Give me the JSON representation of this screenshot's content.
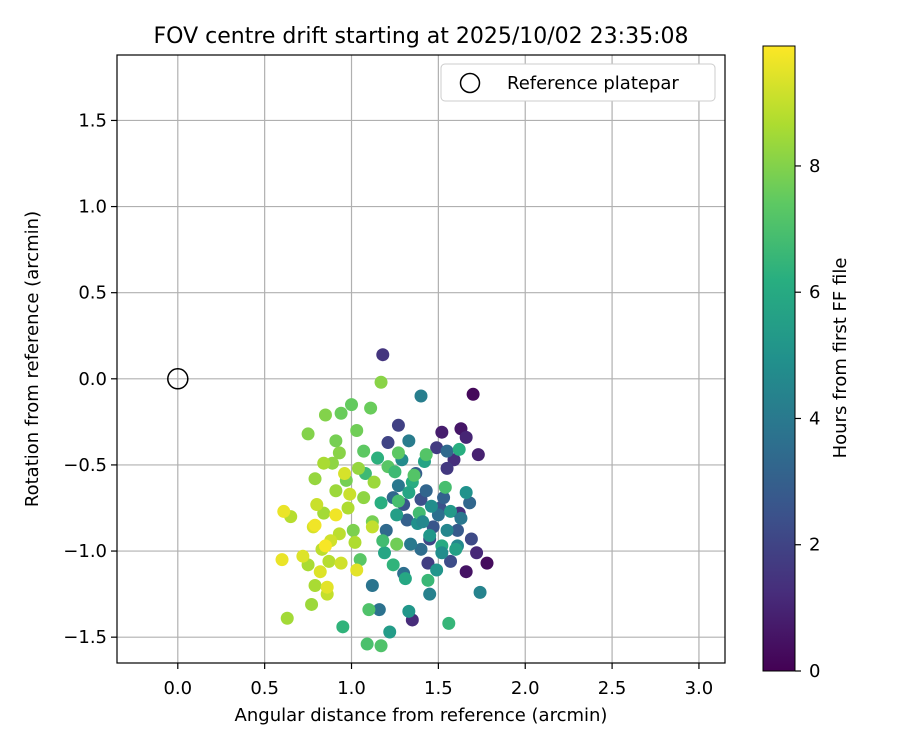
{
  "chart_data": {
    "type": "scatter",
    "title": "FOV centre drift starting at 2025/10/02 23:35:08",
    "xlabel": "Angular distance from reference (arcmin)",
    "ylabel": "Rotation from reference (arcmin)",
    "xlim": [
      -0.35,
      3.15
    ],
    "ylim": [
      -1.65,
      1.88
    ],
    "xticks": [
      0.0,
      0.5,
      1.0,
      1.5,
      2.0,
      2.5,
      3.0
    ],
    "xtick_labels": [
      "0.0",
      "0.5",
      "1.0",
      "1.5",
      "2.0",
      "2.5",
      "3.0"
    ],
    "yticks": [
      -1.5,
      -1.0,
      -0.5,
      0.0,
      0.5,
      1.0,
      1.5
    ],
    "ytick_labels": [
      "−1.5",
      "−1.0",
      "−0.5",
      "0.0",
      "0.5",
      "1.0",
      "1.5"
    ],
    "grid": true,
    "legend": {
      "placement": "upper right",
      "entries": [
        {
          "label": "Reference platepar",
          "marker": "open-circle"
        }
      ]
    },
    "reference_point": {
      "x": 0.0,
      "y": 0.0
    },
    "colorbar": {
      "label": "Hours from first FF file",
      "colormap": "viridis",
      "range": [
        0,
        9.9
      ],
      "ticks": [
        0,
        2,
        4,
        6,
        8
      ],
      "tick_labels": [
        "0",
        "2",
        "4",
        "6",
        "8"
      ]
    },
    "points": [
      [
        1.7,
        -0.09,
        0.2
      ],
      [
        1.78,
        -1.07,
        0.3
      ],
      [
        1.63,
        -0.29,
        0.6
      ],
      [
        1.66,
        -1.12,
        0.5
      ],
      [
        1.73,
        -0.44,
        0.9
      ],
      [
        1.52,
        -0.31,
        0.8
      ],
      [
        1.66,
        -0.34,
        1.0
      ],
      [
        1.18,
        0.14,
        1.5
      ],
      [
        1.35,
        -1.4,
        1.2
      ],
      [
        1.59,
        -0.47,
        1.3
      ],
      [
        1.72,
        -1.01,
        1.1
      ],
      [
        1.62,
        -0.78,
        1.4
      ],
      [
        1.55,
        -0.52,
        1.6
      ],
      [
        1.49,
        -0.4,
        1.7
      ],
      [
        1.44,
        -1.07,
        1.8
      ],
      [
        1.27,
        -0.27,
        1.9
      ],
      [
        1.21,
        -0.37,
        2.0
      ],
      [
        1.45,
        -0.93,
        2.1
      ],
      [
        1.57,
        -1.06,
        2.3
      ],
      [
        1.4,
        -0.7,
        2.4
      ],
      [
        1.69,
        -0.93,
        2.2
      ],
      [
        1.51,
        -0.75,
        2.5
      ],
      [
        1.3,
        -0.73,
        2.6
      ],
      [
        1.47,
        -0.86,
        2.6
      ],
      [
        1.61,
        -0.88,
        2.8
      ],
      [
        1.37,
        -0.55,
        2.9
      ],
      [
        1.32,
        -0.82,
        3.0
      ],
      [
        1.53,
        -0.69,
        3.1
      ],
      [
        1.43,
        -0.65,
        3.2
      ],
      [
        1.24,
        -0.69,
        3.3
      ],
      [
        1.2,
        -0.88,
        3.4
      ],
      [
        1.4,
        -0.99,
        3.5
      ],
      [
        1.3,
        -1.13,
        3.6
      ],
      [
        1.12,
        -1.2,
        3.8
      ],
      [
        1.16,
        -1.34,
        3.7
      ],
      [
        1.27,
        -0.62,
        3.9
      ],
      [
        1.55,
        -0.42,
        3.4
      ],
      [
        1.5,
        -0.79,
        3.6
      ],
      [
        1.68,
        -0.72,
        3.3
      ],
      [
        1.34,
        -0.96,
        4.0
      ],
      [
        1.33,
        -0.36,
        4.1
      ],
      [
        1.4,
        -0.1,
        4.2
      ],
      [
        1.45,
        -1.25,
        4.3
      ],
      [
        1.74,
        -1.24,
        4.4
      ],
      [
        1.55,
        -0.88,
        4.5
      ],
      [
        1.61,
        -0.97,
        4.6
      ],
      [
        1.29,
        -0.47,
        4.7
      ],
      [
        1.46,
        -0.74,
        4.8
      ],
      [
        1.38,
        -0.84,
        4.9
      ],
      [
        1.66,
        -0.66,
        5.0
      ],
      [
        1.49,
        -1.11,
        5.1
      ],
      [
        1.33,
        -1.35,
        5.2
      ],
      [
        1.57,
        -0.77,
        5.3
      ],
      [
        1.22,
        -1.47,
        5.4
      ],
      [
        1.26,
        -0.79,
        5.5
      ],
      [
        1.6,
        -0.99,
        5.6
      ],
      [
        1.42,
        -0.48,
        5.7
      ],
      [
        1.19,
        -1.01,
        5.8
      ],
      [
        1.31,
        -1.16,
        5.9
      ],
      [
        1.52,
        -0.97,
        6.0
      ],
      [
        1.35,
        -0.6,
        6.1
      ],
      [
        1.62,
        -0.41,
        6.2
      ],
      [
        1.15,
        -0.46,
        6.3
      ],
      [
        1.24,
        -1.08,
        6.4
      ],
      [
        0.95,
        -1.44,
        6.4
      ],
      [
        1.56,
        -1.42,
        6.5
      ],
      [
        1.44,
        -1.17,
        6.6
      ],
      [
        1.08,
        -0.55,
        6.7
      ],
      [
        1.39,
        -0.78,
        6.8
      ],
      [
        1.18,
        -0.94,
        6.8
      ],
      [
        1.27,
        -0.71,
        6.9
      ],
      [
        1.54,
        -0.63,
        6.9
      ],
      [
        1.09,
        -1.54,
        7.0
      ],
      [
        1.17,
        -1.55,
        7.1
      ],
      [
        1.1,
        -1.34,
        7.1
      ],
      [
        1.43,
        -0.44,
        7.2
      ],
      [
        1.36,
        -0.56,
        7.2
      ],
      [
        1.21,
        -0.51,
        7.3
      ],
      [
        1.05,
        -1.05,
        7.3
      ],
      [
        1.27,
        -0.43,
        7.4
      ],
      [
        1.0,
        -0.15,
        7.5
      ],
      [
        0.94,
        -0.2,
        7.6
      ],
      [
        1.11,
        -0.17,
        7.6
      ],
      [
        1.03,
        -0.3,
        7.7
      ],
      [
        1.26,
        -0.96,
        7.7
      ],
      [
        1.12,
        -0.83,
        7.8
      ],
      [
        0.97,
        -0.59,
        7.8
      ],
      [
        1.01,
        -0.88,
        7.9
      ],
      [
        0.85,
        -0.21,
        8.0
      ],
      [
        0.75,
        -0.32,
        8.0
      ],
      [
        1.17,
        -0.02,
        8.1
      ],
      [
        0.93,
        -0.43,
        8.1
      ],
      [
        1.07,
        -0.69,
        8.2
      ],
      [
        0.89,
        -0.49,
        8.2
      ],
      [
        1.04,
        -0.52,
        8.3
      ],
      [
        0.79,
        -0.58,
        8.3
      ],
      [
        0.91,
        -0.65,
        8.4
      ],
      [
        1.13,
        -0.6,
        8.4
      ],
      [
        0.84,
        -0.78,
        8.5
      ],
      [
        0.63,
        -1.39,
        8.5
      ],
      [
        0.79,
        -1.2,
        8.6
      ],
      [
        0.75,
        -1.08,
        8.6
      ],
      [
        0.98,
        -0.75,
        8.7
      ],
      [
        1.02,
        -0.95,
        8.7
      ],
      [
        0.65,
        -0.8,
        8.8
      ],
      [
        0.87,
        -1.06,
        8.8
      ],
      [
        0.93,
        -0.9,
        8.9
      ],
      [
        0.83,
        -0.99,
        8.9
      ],
      [
        1.12,
        -0.86,
        9.0
      ],
      [
        0.86,
        -1.25,
        9.0
      ],
      [
        0.8,
        -0.73,
        9.1
      ],
      [
        0.99,
        -0.67,
        9.1
      ],
      [
        0.88,
        -0.94,
        9.2
      ],
      [
        0.94,
        -1.07,
        9.2
      ],
      [
        0.78,
        -0.86,
        9.3
      ],
      [
        0.96,
        -0.55,
        9.3
      ],
      [
        0.82,
        -1.12,
        9.4
      ],
      [
        0.72,
        -1.03,
        9.4
      ],
      [
        1.03,
        -1.11,
        9.5
      ],
      [
        0.86,
        -1.21,
        9.5
      ],
      [
        0.61,
        -0.77,
        9.6
      ],
      [
        0.6,
        -1.05,
        9.6
      ],
      [
        0.91,
        -0.79,
        9.7
      ],
      [
        0.79,
        -0.85,
        9.7
      ],
      [
        0.85,
        -0.97,
        9.8
      ],
      [
        0.77,
        -1.31,
        8.4
      ],
      [
        0.84,
        -0.49,
        8.6
      ],
      [
        0.91,
        -0.36,
        7.8
      ],
      [
        1.07,
        -0.42,
        7.4
      ],
      [
        1.25,
        -0.54,
        6.7
      ],
      [
        1.17,
        -0.72,
        6.2
      ],
      [
        1.33,
        -0.66,
        5.8
      ],
      [
        1.45,
        -0.91,
        5.2
      ],
      [
        1.52,
        -1.01,
        4.8
      ],
      [
        1.41,
        -0.83,
        4.6
      ],
      [
        1.63,
        -0.81,
        3.9
      ]
    ]
  }
}
